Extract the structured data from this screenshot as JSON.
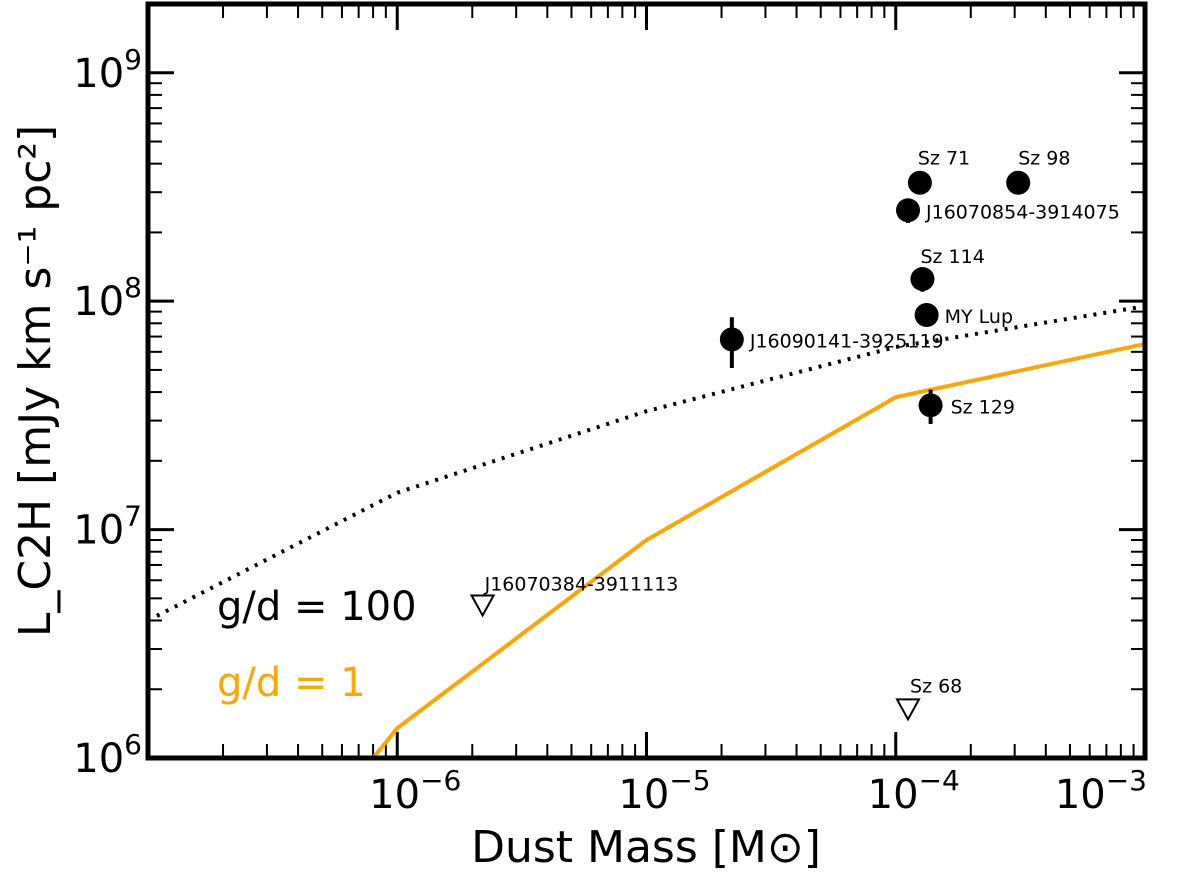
{
  "chart_data": {
    "type": "scatter",
    "xlabel": "Dust Mass [M⊙]",
    "ylabel": "L_C2H [mJy km s⁻¹ pc²]",
    "x_scale": "log",
    "y_scale": "log",
    "xlim": [
      1e-07,
      0.001
    ],
    "ylim": [
      1000000.0,
      2000000000.0
    ],
    "x_ticks": [
      {
        "value": 1e-06,
        "base": "10",
        "exp": "−6"
      },
      {
        "value": 1e-05,
        "base": "10",
        "exp": "−5"
      },
      {
        "value": 0.0001,
        "base": "10",
        "exp": "−4"
      },
      {
        "value": 0.001,
        "base": "10",
        "exp": "−3"
      }
    ],
    "y_ticks": [
      {
        "value": 1000000.0,
        "base": "10",
        "exp": "6"
      },
      {
        "value": 10000000.0,
        "base": "10",
        "exp": "7"
      },
      {
        "value": 100000000.0,
        "base": "10",
        "exp": "8"
      },
      {
        "value": 1000000000.0,
        "base": "10",
        "exp": "9"
      }
    ],
    "detections": [
      {
        "name": "Sz 71",
        "x": 0.000125,
        "y": 330000000.0,
        "yerr_low": 300000000.0,
        "yerr_high": 360000000.0
      },
      {
        "name": "Sz 98",
        "x": 0.00031,
        "y": 330000000.0,
        "yerr_low": 310000000.0,
        "yerr_high": 350000000.0
      },
      {
        "name": "J16070854-3914075",
        "x": 0.000112,
        "y": 250000000.0,
        "yerr_low": 220000000.0,
        "yerr_high": 280000000.0
      },
      {
        "name": "Sz 114",
        "x": 0.000128,
        "y": 125000000.0,
        "yerr_low": 110000000.0,
        "yerr_high": 140000000.0
      },
      {
        "name": "MY Lup",
        "x": 0.000133,
        "y": 87000000.0,
        "yerr_low": 78000000.0,
        "yerr_high": 96000000.0
      },
      {
        "name": "J16090141-3925119",
        "x": 2.2e-05,
        "y": 68000000.0,
        "yerr_low": 51000000.0,
        "yerr_high": 85000000.0
      },
      {
        "name": "Sz 129",
        "x": 0.000138,
        "y": 35000000.0,
        "yerr_low": 29000000.0,
        "yerr_high": 41000000.0
      }
    ],
    "upper_limits": [
      {
        "name": "J16070384-3911113",
        "x": 2.2e-06,
        "y": 4700000.0
      },
      {
        "name": "Sz 68",
        "x": 0.000112,
        "y": 1650000.0
      }
    ],
    "series": [
      {
        "name": "g/d = 100",
        "color": "#000000",
        "style": "dotted",
        "x": [
          1e-07,
          1e-06,
          1e-05,
          0.0001,
          0.001
        ],
        "y": [
          4000000.0,
          14500000.0,
          33000000.0,
          63000000.0,
          95000000.0
        ]
      },
      {
        "name": "g/d = 1",
        "color": "#ffa500",
        "style": "solid",
        "x": [
          8e-07,
          1e-06,
          1e-05,
          0.0001,
          0.001
        ],
        "y": [
          1000000.0,
          1350000.0,
          9000000.0,
          38000000.0,
          65000000.0
        ]
      }
    ],
    "annotations": [
      {
        "text": "g/d = 100",
        "color": "#000000"
      },
      {
        "text": "g/d = 1",
        "color": "#ffa500"
      }
    ]
  }
}
